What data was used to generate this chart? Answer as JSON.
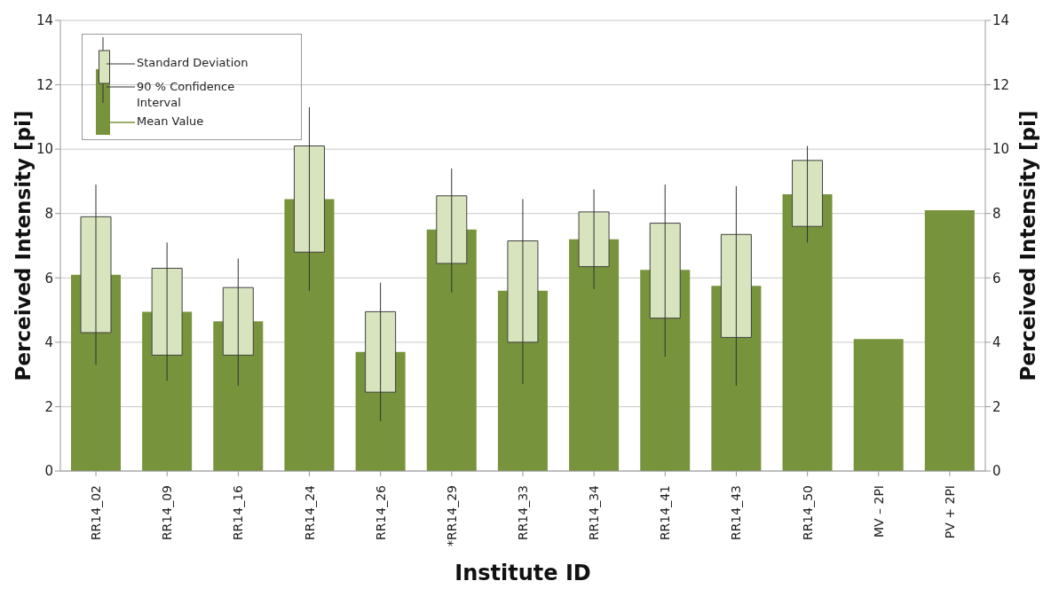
{
  "chart_data": {
    "type": "bar",
    "xlabel": "Institute ID",
    "ylabel": "Perceived Intensity [pi]",
    "y2label": "Perceived Intensity [pi]",
    "categories": [
      "RR14_02",
      "RR14_09",
      "RR14_16",
      "RR14_24",
      "RR14_26",
      "*RR14_29",
      "RR14_33",
      "RR14_34",
      "RR14_41",
      "RR14_43",
      "RR14_50",
      "MV – 2PI",
      "PV + 2PI"
    ],
    "series": [
      {
        "name": "Mean Value",
        "color": "#77933c",
        "values": [
          6.1,
          4.95,
          4.65,
          8.45,
          3.7,
          7.5,
          5.6,
          7.2,
          6.25,
          5.75,
          8.6,
          4.1,
          8.1
        ],
        "errors": [
          [
            3.3,
            8.9
          ],
          [
            2.8,
            7.1
          ],
          [
            2.65,
            6.6
          ],
          [
            5.6,
            11.3
          ],
          [
            1.55,
            5.85
          ],
          [
            5.55,
            9.4
          ],
          [
            2.7,
            8.45
          ],
          [
            5.65,
            8.75
          ],
          [
            3.55,
            8.9
          ],
          [
            2.65,
            8.85
          ],
          [
            7.1,
            10.1
          ],
          null,
          null
        ]
      },
      {
        "name": "90 % Confidence Interval",
        "color": "#d7e4bd",
        "base": [
          4.3,
          3.6,
          3.6,
          6.8,
          2.45,
          6.45,
          4.0,
          6.35,
          4.75,
          4.15,
          7.6,
          null,
          null
        ],
        "values": [
          3.6,
          2.7,
          2.1,
          3.3,
          2.5,
          2.1,
          3.15,
          1.7,
          2.95,
          3.2,
          2.05,
          null,
          null
        ]
      }
    ],
    "annotations": [
      "Standard Deviation"
    ],
    "ylim": [
      0,
      14
    ],
    "yticks": [
      0,
      2,
      4,
      6,
      8,
      10,
      12,
      14
    ],
    "y2lim": [
      0,
      14
    ],
    "y2ticks": [
      0,
      2,
      4,
      6,
      8,
      10,
      12,
      14
    ],
    "grid": "y",
    "legend": "top left"
  }
}
